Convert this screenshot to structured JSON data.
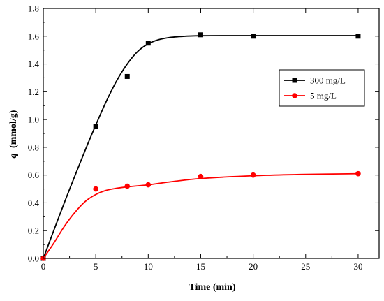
{
  "chart_data": {
    "type": "scatter",
    "title": "",
    "xlabel": "Time (min)",
    "ylabel_symbol": "q",
    "ylabel_unit": "(mmol/g)",
    "xlim": [
      0,
      32
    ],
    "ylim": [
      0,
      1.8
    ],
    "xticks": [
      0,
      5,
      10,
      15,
      20,
      25,
      30
    ],
    "yticks": [
      0.0,
      0.2,
      0.4,
      0.6,
      0.8,
      1.0,
      1.2,
      1.4,
      1.6,
      1.8
    ],
    "xtick_labels": [
      "0",
      "5",
      "10",
      "15",
      "20",
      "25",
      "30"
    ],
    "ytick_labels": [
      "0.0",
      "0.2",
      "0.4",
      "0.6",
      "0.8",
      "1.0",
      "1.2",
      "1.4",
      "1.6",
      "1.8"
    ],
    "grid": false,
    "legend_position": "right",
    "series": [
      {
        "name": "300 mg/L",
        "marker": "square",
        "color": "#000000",
        "x": [
          0,
          5,
          8,
          10,
          15,
          20,
          30
        ],
        "y": [
          0.0,
          0.95,
          1.31,
          1.55,
          1.61,
          1.6,
          1.6
        ],
        "fit_x": [
          0,
          2,
          4,
          5,
          6,
          7,
          8,
          9,
          10,
          11,
          12,
          13,
          14,
          15,
          17,
          20,
          25,
          30
        ],
        "fit_y": [
          0.0,
          0.4,
          0.78,
          0.96,
          1.13,
          1.28,
          1.4,
          1.49,
          1.545,
          1.575,
          1.59,
          1.597,
          1.601,
          1.603,
          1.604,
          1.604,
          1.604,
          1.604
        ]
      },
      {
        "name": "5 mg/L",
        "marker": "circle",
        "color": "#ff0000",
        "x": [
          0,
          5,
          8,
          10,
          15,
          20,
          30
        ],
        "y": [
          0.0,
          0.5,
          0.52,
          0.53,
          0.59,
          0.6,
          0.61
        ],
        "fit_x": [
          0,
          1,
          2,
          3,
          4,
          5,
          6,
          7,
          8,
          10,
          12,
          15,
          20,
          25,
          30
        ],
        "fit_y": [
          0.0,
          0.11,
          0.23,
          0.33,
          0.41,
          0.46,
          0.49,
          0.505,
          0.515,
          0.53,
          0.55,
          0.575,
          0.595,
          0.605,
          0.61
        ]
      }
    ]
  }
}
